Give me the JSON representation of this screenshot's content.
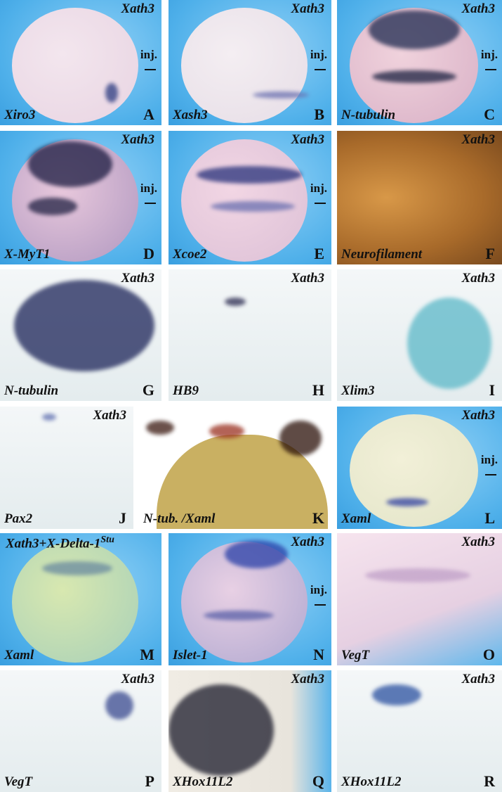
{
  "panels": [
    {
      "letter": "A",
      "top": "Xath3",
      "bottom": "Xiro3",
      "inj": "inj."
    },
    {
      "letter": "B",
      "top": "Xath3",
      "bottom": "Xash3",
      "inj": "inj."
    },
    {
      "letter": "C",
      "top": "Xath3",
      "bottom": "N-tubulin",
      "inj": "inj."
    },
    {
      "letter": "D",
      "top": "Xath3",
      "bottom": "X-MyT1",
      "inj": "inj."
    },
    {
      "letter": "E",
      "top": "Xath3",
      "bottom": "Xcoe2",
      "inj": "inj."
    },
    {
      "letter": "F",
      "top": "Xath3",
      "bottom": "Neurofilament"
    },
    {
      "letter": "G",
      "top": "Xath3",
      "bottom": "N-tubulin"
    },
    {
      "letter": "H",
      "top": "Xath3",
      "bottom": "HB9"
    },
    {
      "letter": "I",
      "top": "Xath3",
      "bottom": "Xlim3"
    },
    {
      "letter": "J",
      "top": "Xath3",
      "bottom": "Pax2"
    },
    {
      "letter": "K",
      "bottom": "N-tub. /Xaml"
    },
    {
      "letter": "L",
      "top": "Xath3",
      "bottom": "Xaml",
      "inj": "inj."
    },
    {
      "letter": "M",
      "top": "Xath3+X-Delta-1",
      "top_sup": "Stu",
      "bottom": "Xaml"
    },
    {
      "letter": "N",
      "top": "Xath3",
      "bottom": "Islet-1",
      "inj": "inj."
    },
    {
      "letter": "O",
      "top": "Xath3",
      "bottom": "VegT"
    },
    {
      "letter": "P",
      "top": "Xath3",
      "bottom": "VegT"
    },
    {
      "letter": "Q",
      "top": "Xath3",
      "bottom": "XHox11L2"
    },
    {
      "letter": "R",
      "top": "Xath3",
      "bottom": "XHox11L2"
    }
  ]
}
